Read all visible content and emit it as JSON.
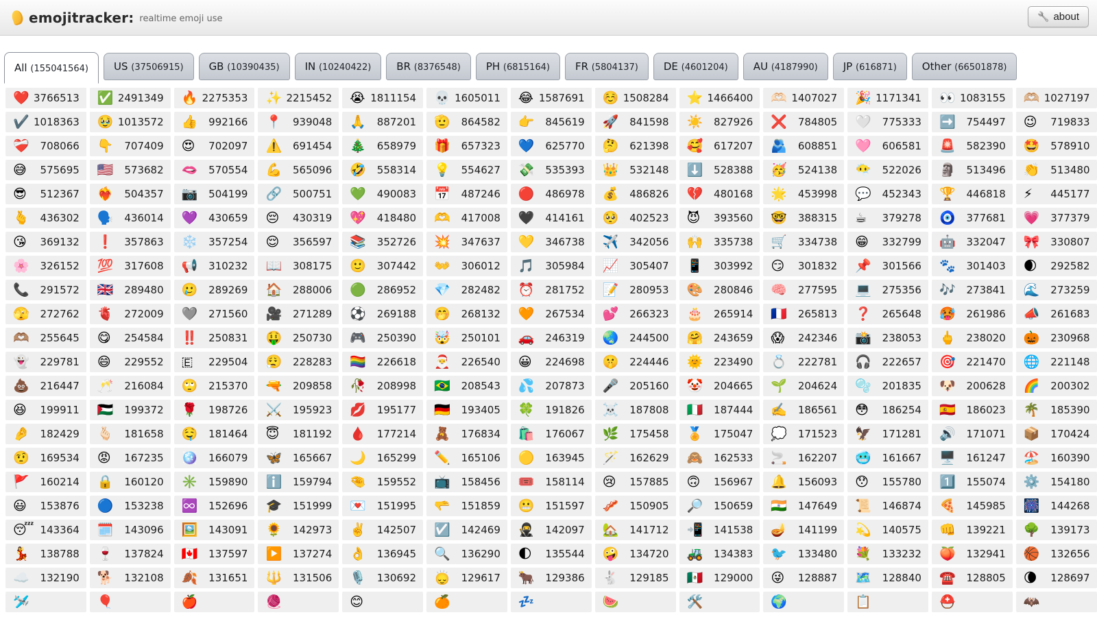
{
  "header": {
    "title": "emojitracker:",
    "subtitle": "realtime emoji use",
    "about_label": "about",
    "wrench_icon": "🔧",
    "accent_color": "#f5a623"
  },
  "tabs": [
    {
      "name": "All",
      "count": "(155041564)",
      "active": true
    },
    {
      "name": "US",
      "count": "(37506915)",
      "active": false
    },
    {
      "name": "GB",
      "count": "(10390435)",
      "active": false
    },
    {
      "name": "IN",
      "count": "(10240422)",
      "active": false
    },
    {
      "name": "BR",
      "count": "(8376548)",
      "active": false
    },
    {
      "name": "PH",
      "count": "(6815164)",
      "active": false
    },
    {
      "name": "FR",
      "count": "(5804137)",
      "active": false
    },
    {
      "name": "DE",
      "count": "(4601204)",
      "active": false
    },
    {
      "name": "AU",
      "count": "(4187990)",
      "active": false
    },
    {
      "name": "JP",
      "count": "(616871)",
      "active": false
    },
    {
      "name": "Other",
      "count": "(66501878)",
      "active": false
    }
  ],
  "grid": {
    "columns": 13,
    "cell_bg": "#efefef",
    "cells": [
      {
        "e": "❤️",
        "n": "3766513"
      },
      {
        "e": "✅",
        "n": "2491349"
      },
      {
        "e": "🔥",
        "n": "2275353"
      },
      {
        "e": "✨",
        "n": "2215452"
      },
      {
        "e": "😭",
        "n": "1811154"
      },
      {
        "e": "💀",
        "n": "1605011"
      },
      {
        "e": "😂",
        "n": "1587691"
      },
      {
        "e": "☺️",
        "n": "1508284"
      },
      {
        "e": "⭐",
        "n": "1466400"
      },
      {
        "e": "🫶🏻",
        "n": "1407027"
      },
      {
        "e": "🎉",
        "n": "1171341"
      },
      {
        "e": "👀",
        "n": "1083155"
      },
      {
        "e": "🫶🏼",
        "n": "1027197"
      },
      {
        "e": "✔️",
        "n": "1018363"
      },
      {
        "e": "🥹",
        "n": "1013572"
      },
      {
        "e": "👍",
        "n": "992166"
      },
      {
        "e": "📍",
        "n": "939048"
      },
      {
        "e": "🙏",
        "n": "887201"
      },
      {
        "e": "🫡",
        "n": "864582"
      },
      {
        "e": "👉",
        "n": "845619"
      },
      {
        "e": "🚀",
        "n": "841598"
      },
      {
        "e": "☀️",
        "n": "827926"
      },
      {
        "e": "❌",
        "n": "784805"
      },
      {
        "e": "🤍",
        "n": "775333"
      },
      {
        "e": "➡️",
        "n": "754497"
      },
      {
        "e": "😉",
        "n": "719833"
      },
      {
        "e": "❤️‍🩹",
        "n": "708066"
      },
      {
        "e": "👇",
        "n": "707409"
      },
      {
        "e": "😍",
        "n": "702097"
      },
      {
        "e": "⚠️",
        "n": "691454"
      },
      {
        "e": "🎄",
        "n": "658979"
      },
      {
        "e": "🎁",
        "n": "657323"
      },
      {
        "e": "💙",
        "n": "625770"
      },
      {
        "e": "🤔",
        "n": "621398"
      },
      {
        "e": "🥰",
        "n": "617207"
      },
      {
        "e": "🫂",
        "n": "608851"
      },
      {
        "e": "🩷",
        "n": "606581"
      },
      {
        "e": "🚨",
        "n": "582390"
      },
      {
        "e": "🤩",
        "n": "578910"
      },
      {
        "e": "😅",
        "n": "575695"
      },
      {
        "e": "🇺🇸",
        "n": "573682"
      },
      {
        "e": "🫦",
        "n": "570554"
      },
      {
        "e": "💪",
        "n": "565096"
      },
      {
        "e": "🤣",
        "n": "558314"
      },
      {
        "e": "💡",
        "n": "554627"
      },
      {
        "e": "💸",
        "n": "535393"
      },
      {
        "e": "👑",
        "n": "532148"
      },
      {
        "e": "⬇️",
        "n": "528388"
      },
      {
        "e": "🥳",
        "n": "524138"
      },
      {
        "e": "😶‍🌫️",
        "n": "522026"
      },
      {
        "e": "🗿",
        "n": "513496"
      },
      {
        "e": "👏",
        "n": "513480"
      },
      {
        "e": "😎",
        "n": "512367"
      },
      {
        "e": "❤️‍🔥",
        "n": "504357"
      },
      {
        "e": "📷",
        "n": "504199"
      },
      {
        "e": "🔗",
        "n": "500751"
      },
      {
        "e": "💚",
        "n": "490083"
      },
      {
        "e": "📅",
        "n": "487246"
      },
      {
        "e": "🔴",
        "n": "486978"
      },
      {
        "e": "💰",
        "n": "486826"
      },
      {
        "e": "💔",
        "n": "480168"
      },
      {
        "e": "🌟",
        "n": "453998"
      },
      {
        "e": "💬",
        "n": "452343"
      },
      {
        "e": "🏆",
        "n": "446818"
      },
      {
        "e": "⚡",
        "n": "445177"
      },
      {
        "e": "🫰",
        "n": "436302"
      },
      {
        "e": "🗣️",
        "n": "436014"
      },
      {
        "e": "💜",
        "n": "430659"
      },
      {
        "e": "😔",
        "n": "430319"
      },
      {
        "e": "💖",
        "n": "418480"
      },
      {
        "e": "🫶",
        "n": "417008"
      },
      {
        "e": "🖤",
        "n": "414161"
      },
      {
        "e": "🥺",
        "n": "402523"
      },
      {
        "e": "😈",
        "n": "393560"
      },
      {
        "e": "🤓",
        "n": "388315"
      },
      {
        "e": "☕",
        "n": "379278"
      },
      {
        "e": "🧿",
        "n": "377681"
      },
      {
        "e": "💗",
        "n": "377379"
      },
      {
        "e": "😘",
        "n": "369132"
      },
      {
        "e": "❗",
        "n": "357863"
      },
      {
        "e": "❄️",
        "n": "357254"
      },
      {
        "e": "😌",
        "n": "356597"
      },
      {
        "e": "📚",
        "n": "352726"
      },
      {
        "e": "💥",
        "n": "347637"
      },
      {
        "e": "💛",
        "n": "346738"
      },
      {
        "e": "✈️",
        "n": "342056"
      },
      {
        "e": "🙌",
        "n": "335738"
      },
      {
        "e": "🛒",
        "n": "334738"
      },
      {
        "e": "😁",
        "n": "332799"
      },
      {
        "e": "🤖",
        "n": "332047"
      },
      {
        "e": "🎀",
        "n": "330807"
      },
      {
        "e": "🌸",
        "n": "326152"
      },
      {
        "e": "💯",
        "n": "317608"
      },
      {
        "e": "📢",
        "n": "310232"
      },
      {
        "e": "📖",
        "n": "308175"
      },
      {
        "e": "🙂",
        "n": "307442"
      },
      {
        "e": "👐",
        "n": "306012"
      },
      {
        "e": "🎵",
        "n": "305984"
      },
      {
        "e": "📈",
        "n": "305407"
      },
      {
        "e": "📱",
        "n": "303992"
      },
      {
        "e": "😏",
        "n": "301832"
      },
      {
        "e": "📌",
        "n": "301566"
      },
      {
        "e": "🐾",
        "n": "301403"
      },
      {
        "e": "🌒",
        "n": "292582"
      },
      {
        "e": "📞",
        "n": "291572"
      },
      {
        "e": "🇬🇧",
        "n": "289480"
      },
      {
        "e": "🥲",
        "n": "289269"
      },
      {
        "e": "🏠",
        "n": "288006"
      },
      {
        "e": "🟢",
        "n": "286952"
      },
      {
        "e": "💎",
        "n": "282482"
      },
      {
        "e": "⏰",
        "n": "281752"
      },
      {
        "e": "📝",
        "n": "280953"
      },
      {
        "e": "🎨",
        "n": "280846"
      },
      {
        "e": "🧠",
        "n": "277595"
      },
      {
        "e": "💻",
        "n": "275356"
      },
      {
        "e": "🎶",
        "n": "273841"
      },
      {
        "e": "🌊",
        "n": "273259"
      },
      {
        "e": "🫣",
        "n": "272762"
      },
      {
        "e": "🫀",
        "n": "272009"
      },
      {
        "e": "🩶",
        "n": "271560"
      },
      {
        "e": "🎥",
        "n": "271289"
      },
      {
        "e": "⚽",
        "n": "269188"
      },
      {
        "e": "🤭",
        "n": "268132"
      },
      {
        "e": "🧡",
        "n": "267534"
      },
      {
        "e": "💕",
        "n": "266323"
      },
      {
        "e": "🎂",
        "n": "265914"
      },
      {
        "e": "🇫🇷",
        "n": "265813"
      },
      {
        "e": "❓",
        "n": "265648"
      },
      {
        "e": "🥵",
        "n": "261986"
      },
      {
        "e": "📣",
        "n": "261683"
      },
      {
        "e": "🫶🏽",
        "n": "255645"
      },
      {
        "e": "😋",
        "n": "254584"
      },
      {
        "e": "‼️",
        "n": "250831"
      },
      {
        "e": "🤑",
        "n": "250730"
      },
      {
        "e": "🎮",
        "n": "250390"
      },
      {
        "e": "🤯",
        "n": "250101"
      },
      {
        "e": "🚗",
        "n": "246319"
      },
      {
        "e": "🌏",
        "n": "244500"
      },
      {
        "e": "🤗",
        "n": "243659"
      },
      {
        "e": "😱",
        "n": "242346"
      },
      {
        "e": "📸",
        "n": "238053"
      },
      {
        "e": "🖕",
        "n": "238020"
      },
      {
        "e": "🎃",
        "n": "230968"
      },
      {
        "e": "👻",
        "n": "229781"
      },
      {
        "e": "😄",
        "n": "229552"
      },
      {
        "e": "🇪",
        "n": "229504"
      },
      {
        "e": "😮‍💨",
        "n": "228283"
      },
      {
        "e": "🏳️‍🌈",
        "n": "226618"
      },
      {
        "e": "🎅",
        "n": "226540"
      },
      {
        "e": "😀",
        "n": "224698"
      },
      {
        "e": "🤫",
        "n": "224446"
      },
      {
        "e": "🌞",
        "n": "223490"
      },
      {
        "e": "💍",
        "n": "222781"
      },
      {
        "e": "🎧",
        "n": "222657"
      },
      {
        "e": "🎯",
        "n": "221470"
      },
      {
        "e": "🌐",
        "n": "221148"
      },
      {
        "e": "💩",
        "n": "216447"
      },
      {
        "e": "🥂",
        "n": "216084"
      },
      {
        "e": "🙄",
        "n": "215370"
      },
      {
        "e": "🔫",
        "n": "209858"
      },
      {
        "e": "🥀",
        "n": "208998"
      },
      {
        "e": "🇧🇷",
        "n": "208543"
      },
      {
        "e": "💦",
        "n": "207873"
      },
      {
        "e": "🎤",
        "n": "205160"
      },
      {
        "e": "🤡",
        "n": "204665"
      },
      {
        "e": "🌱",
        "n": "204624"
      },
      {
        "e": "🫧",
        "n": "201835"
      },
      {
        "e": "🐶",
        "n": "200628"
      },
      {
        "e": "🌈",
        "n": "200302"
      },
      {
        "e": "😆",
        "n": "199911"
      },
      {
        "e": "🇵🇸",
        "n": "199372"
      },
      {
        "e": "🌹",
        "n": "198726"
      },
      {
        "e": "⚔️",
        "n": "195923"
      },
      {
        "e": "💋",
        "n": "195177"
      },
      {
        "e": "🇩🇪",
        "n": "193405"
      },
      {
        "e": "🍀",
        "n": "191826"
      },
      {
        "e": "☠️",
        "n": "187808"
      },
      {
        "e": "🇮🇹",
        "n": "187444"
      },
      {
        "e": "✍️",
        "n": "186561"
      },
      {
        "e": "😳",
        "n": "186254"
      },
      {
        "e": "🇪🇸",
        "n": "186023"
      },
      {
        "e": "🌴",
        "n": "185390"
      },
      {
        "e": "🤌",
        "n": "182429"
      },
      {
        "e": "🫰🏻",
        "n": "181658"
      },
      {
        "e": "🤤",
        "n": "181464"
      },
      {
        "e": "😇",
        "n": "181192"
      },
      {
        "e": "🩸",
        "n": "177214"
      },
      {
        "e": "🧸",
        "n": "176834"
      },
      {
        "e": "🛍️",
        "n": "176067"
      },
      {
        "e": "🌿",
        "n": "175458"
      },
      {
        "e": "🏅",
        "n": "175047"
      },
      {
        "e": "💭",
        "n": "171523"
      },
      {
        "e": "🦅",
        "n": "171281"
      },
      {
        "e": "🔊",
        "n": "171071"
      },
      {
        "e": "📦",
        "n": "170424"
      },
      {
        "e": "🤨",
        "n": "169534"
      },
      {
        "e": "😡",
        "n": "167235"
      },
      {
        "e": "🪩",
        "n": "166079"
      },
      {
        "e": "🦋",
        "n": "165667"
      },
      {
        "e": "🌙",
        "n": "165299"
      },
      {
        "e": "✏️",
        "n": "165106"
      },
      {
        "e": "🟡",
        "n": "163945"
      },
      {
        "e": "🪄",
        "n": "162629"
      },
      {
        "e": "🙈",
        "n": "162533"
      },
      {
        "e": "🚬",
        "n": "162207"
      },
      {
        "e": "🥶",
        "n": "161667"
      },
      {
        "e": "🖥️",
        "n": "161247"
      },
      {
        "e": "🏖️",
        "n": "160390"
      },
      {
        "e": "🚩",
        "n": "160214"
      },
      {
        "e": "🔒",
        "n": "160120"
      },
      {
        "e": "✳️",
        "n": "159890"
      },
      {
        "e": "ℹ️",
        "n": "159794"
      },
      {
        "e": "🤏",
        "n": "159552"
      },
      {
        "e": "📺",
        "n": "158456"
      },
      {
        "e": "🎟️",
        "n": "158114"
      },
      {
        "e": "😢",
        "n": "157885"
      },
      {
        "e": "🙃",
        "n": "156967"
      },
      {
        "e": "🔔",
        "n": "156093"
      },
      {
        "e": "😯",
        "n": "155780"
      },
      {
        "e": "1️⃣",
        "n": "155074"
      },
      {
        "e": "⚙️",
        "n": "154180"
      },
      {
        "e": "😃",
        "n": "153876"
      },
      {
        "e": "🔵",
        "n": "153238"
      },
      {
        "e": "♾️",
        "n": "152696"
      },
      {
        "e": "🎓",
        "n": "151999"
      },
      {
        "e": "💌",
        "n": "151995"
      },
      {
        "e": "🫳",
        "n": "151859"
      },
      {
        "e": "😬",
        "n": "151597"
      },
      {
        "e": "🥓",
        "n": "150905"
      },
      {
        "e": "🔎",
        "n": "150659"
      },
      {
        "e": "🇮🇳",
        "n": "147649"
      },
      {
        "e": "📜",
        "n": "146874"
      },
      {
        "e": "🍕",
        "n": "145985"
      },
      {
        "e": "🎆",
        "n": "144268"
      },
      {
        "e": "😴",
        "n": "143364"
      },
      {
        "e": "🗓️",
        "n": "143096"
      },
      {
        "e": "🖼️",
        "n": "143091"
      },
      {
        "e": "🌻",
        "n": "142973"
      },
      {
        "e": "✌️",
        "n": "142507"
      },
      {
        "e": "☑️",
        "n": "142469"
      },
      {
        "e": "🥷",
        "n": "142097"
      },
      {
        "e": "🏡",
        "n": "141712"
      },
      {
        "e": "📲",
        "n": "141538"
      },
      {
        "e": "🪔",
        "n": "141199"
      },
      {
        "e": "💫",
        "n": "140575"
      },
      {
        "e": "👊",
        "n": "139221"
      },
      {
        "e": "🌳",
        "n": "139173"
      },
      {
        "e": "💃",
        "n": "138788"
      },
      {
        "e": "🍷",
        "n": "137824"
      },
      {
        "e": "🇨🇦",
        "n": "137597"
      },
      {
        "e": "▶️",
        "n": "137274"
      },
      {
        "e": "👌",
        "n": "136945"
      },
      {
        "e": "🔍",
        "n": "136290"
      },
      {
        "e": "🌓",
        "n": "135544"
      },
      {
        "e": "🤪",
        "n": "134720"
      },
      {
        "e": "🚜",
        "n": "134383"
      },
      {
        "e": "🐦",
        "n": "133480"
      },
      {
        "e": "💐",
        "n": "133232"
      },
      {
        "e": "🍑",
        "n": "132941"
      },
      {
        "e": "🏀",
        "n": "132656"
      },
      {
        "e": "☁️",
        "n": "132190"
      },
      {
        "e": "🐕",
        "n": "132108"
      },
      {
        "e": "🍂",
        "n": "131651"
      },
      {
        "e": "🔱",
        "n": "131506"
      },
      {
        "e": "🎙️",
        "n": "130692"
      },
      {
        "e": "🙂‍↕️",
        "n": "129617"
      },
      {
        "e": "🐂",
        "n": "129386"
      },
      {
        "e": "🐇",
        "n": "129185"
      },
      {
        "e": "🇲🇽",
        "n": "129000"
      },
      {
        "e": "😜",
        "n": "128887"
      },
      {
        "e": "🗺️",
        "n": "128840"
      },
      {
        "e": "☎️",
        "n": "128805"
      },
      {
        "e": "🌘",
        "n": "128697"
      },
      {
        "e": "🛩️",
        "n": ""
      },
      {
        "e": "🎈",
        "n": ""
      },
      {
        "e": "🍎",
        "n": ""
      },
      {
        "e": "🧶",
        "n": ""
      },
      {
        "e": "😊",
        "n": ""
      },
      {
        "e": "🍊",
        "n": ""
      },
      {
        "e": "💤",
        "n": ""
      },
      {
        "e": "🍉",
        "n": ""
      },
      {
        "e": "🛠️",
        "n": ""
      },
      {
        "e": "🌍",
        "n": ""
      },
      {
        "e": "📋",
        "n": ""
      },
      {
        "e": "⛑️",
        "n": ""
      },
      {
        "e": "🦇",
        "n": ""
      }
    ]
  }
}
